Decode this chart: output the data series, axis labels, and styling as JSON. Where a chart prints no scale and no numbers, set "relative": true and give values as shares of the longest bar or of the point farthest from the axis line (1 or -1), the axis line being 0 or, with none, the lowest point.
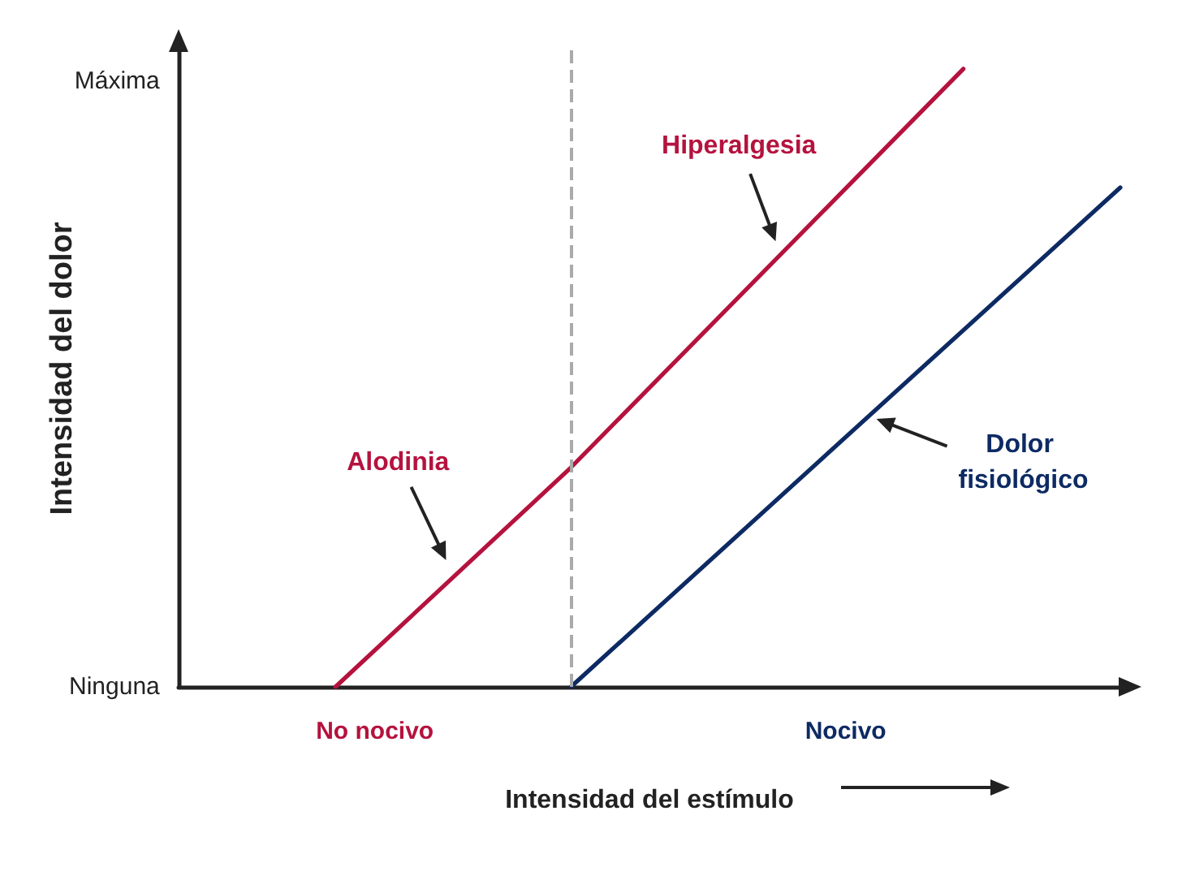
{
  "chart_data": {
    "type": "line",
    "relative": true,
    "xlabel": "Intensidad del estímulo",
    "ylabel": "Intensidad del dolor",
    "categories": [
      null,
      null,
      null,
      null,
      null,
      "No nocivo",
      null,
      null,
      null,
      null,
      null,
      null,
      null,
      null,
      null,
      null,
      null,
      "Nocivo",
      null,
      null,
      null,
      null,
      null,
      null,
      null
    ],
    "tick_labels": "x",
    "series": [
      {
        "color": "#b5123e",
        "values": [
          null,
          null,
          null,
          null,
          0,
          null,
          null,
          null,
          null,
          null,
          0.355,
          null,
          null,
          null,
          null,
          null,
          null,
          null,
          null,
          null,
          1,
          null,
          null,
          null,
          null
        ]
      },
      {
        "color": "#0d2a63",
        "values": [
          null,
          null,
          null,
          null,
          null,
          null,
          null,
          null,
          null,
          null,
          0,
          null,
          null,
          null,
          null,
          null,
          null,
          null,
          null,
          null,
          null,
          null,
          null,
          null,
          0.808
        ]
      }
    ],
    "annotations": [
      "Máxima",
      "Ninguna",
      "Hiperalgesia",
      "Alodinia",
      "Dolor fisiológico"
    ]
  }
}
